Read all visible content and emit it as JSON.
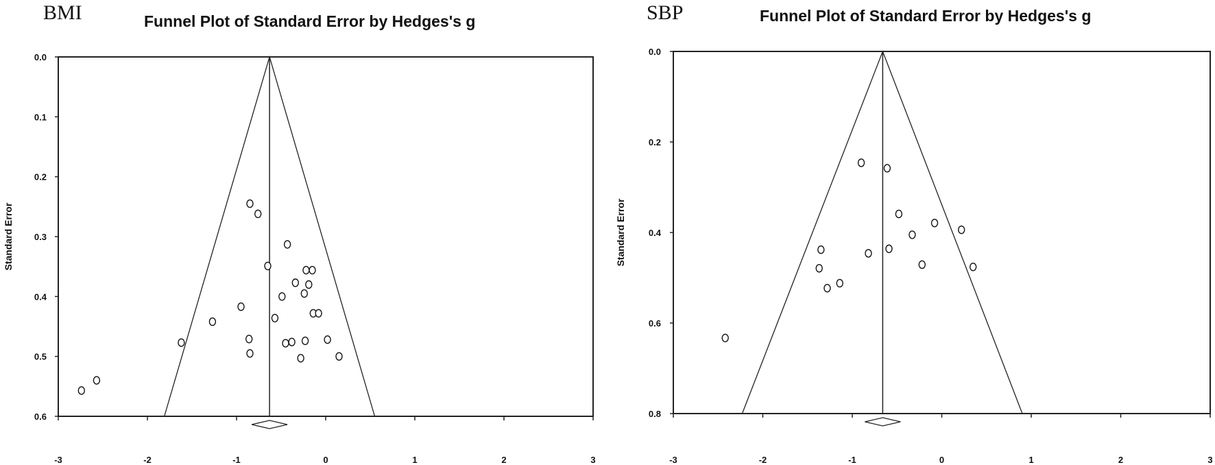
{
  "chart_data": [
    {
      "type": "scatter",
      "panel_label": "BMI",
      "title": "Funnel Plot of Standard Error by Hedges's g",
      "xlabel": "",
      "ylabel": "Standard Error",
      "xlim": [
        -3,
        3
      ],
      "ylim": [
        0.6,
        0.0
      ],
      "y_inverted": true,
      "xticks": [
        "-3",
        "-2",
        "-1",
        "0",
        "1",
        "2",
        "3"
      ],
      "yticks": [
        "0.0",
        "0.1",
        "0.2",
        "0.3",
        "0.4",
        "0.5",
        "0.6"
      ],
      "grid": false,
      "legend": null,
      "pooled_effect": -0.63,
      "funnel_bottom": [
        -1.81,
        0.55
      ],
      "points": [
        {
          "x": -0.85,
          "y": 0.245
        },
        {
          "x": -0.76,
          "y": 0.262
        },
        {
          "x": -0.43,
          "y": 0.313
        },
        {
          "x": -0.65,
          "y": 0.349
        },
        {
          "x": -0.22,
          "y": 0.356
        },
        {
          "x": -0.15,
          "y": 0.356
        },
        {
          "x": -0.34,
          "y": 0.377
        },
        {
          "x": -0.19,
          "y": 0.38
        },
        {
          "x": -0.49,
          "y": 0.4
        },
        {
          "x": -0.24,
          "y": 0.395
        },
        {
          "x": -0.95,
          "y": 0.417
        },
        {
          "x": -0.57,
          "y": 0.436
        },
        {
          "x": -0.14,
          "y": 0.428
        },
        {
          "x": -0.08,
          "y": 0.428
        },
        {
          "x": -1.27,
          "y": 0.442
        },
        {
          "x": -0.86,
          "y": 0.471
        },
        {
          "x": -0.85,
          "y": 0.495
        },
        {
          "x": -1.62,
          "y": 0.477
        },
        {
          "x": -0.45,
          "y": 0.478
        },
        {
          "x": -0.38,
          "y": 0.476
        },
        {
          "x": -0.23,
          "y": 0.474
        },
        {
          "x": 0.02,
          "y": 0.472
        },
        {
          "x": -0.28,
          "y": 0.503
        },
        {
          "x": 0.15,
          "y": 0.5
        },
        {
          "x": -2.74,
          "y": 0.557
        },
        {
          "x": -2.57,
          "y": 0.54
        }
      ]
    },
    {
      "type": "scatter",
      "panel_label": "SBP",
      "title": "Funnel Plot of Standard Error by Hedges's g",
      "xlabel": "",
      "ylabel": "Standard Error",
      "xlim": [
        -3,
        3
      ],
      "ylim": [
        0.8,
        0.0
      ],
      "y_inverted": true,
      "xticks": [
        "-3",
        "-2",
        "-1",
        "0",
        "1",
        "2",
        "3"
      ],
      "yticks": [
        "0.0",
        "0.2",
        "0.4",
        "0.6",
        "0.8"
      ],
      "grid": false,
      "legend": null,
      "pooled_effect": -0.66,
      "funnel_bottom": [
        -2.23,
        0.9
      ],
      "points": [
        {
          "x": -0.9,
          "y": 0.246
        },
        {
          "x": -0.61,
          "y": 0.258
        },
        {
          "x": -0.48,
          "y": 0.359
        },
        {
          "x": -0.08,
          "y": 0.379
        },
        {
          "x": 0.22,
          "y": 0.394
        },
        {
          "x": -0.33,
          "y": 0.405
        },
        {
          "x": -1.35,
          "y": 0.438
        },
        {
          "x": -0.82,
          "y": 0.446
        },
        {
          "x": -0.59,
          "y": 0.436
        },
        {
          "x": -0.22,
          "y": 0.471
        },
        {
          "x": 0.35,
          "y": 0.476
        },
        {
          "x": -1.37,
          "y": 0.479
        },
        {
          "x": -1.14,
          "y": 0.512
        },
        {
          "x": -1.28,
          "y": 0.523
        },
        {
          "x": -2.42,
          "y": 0.633
        }
      ]
    }
  ]
}
